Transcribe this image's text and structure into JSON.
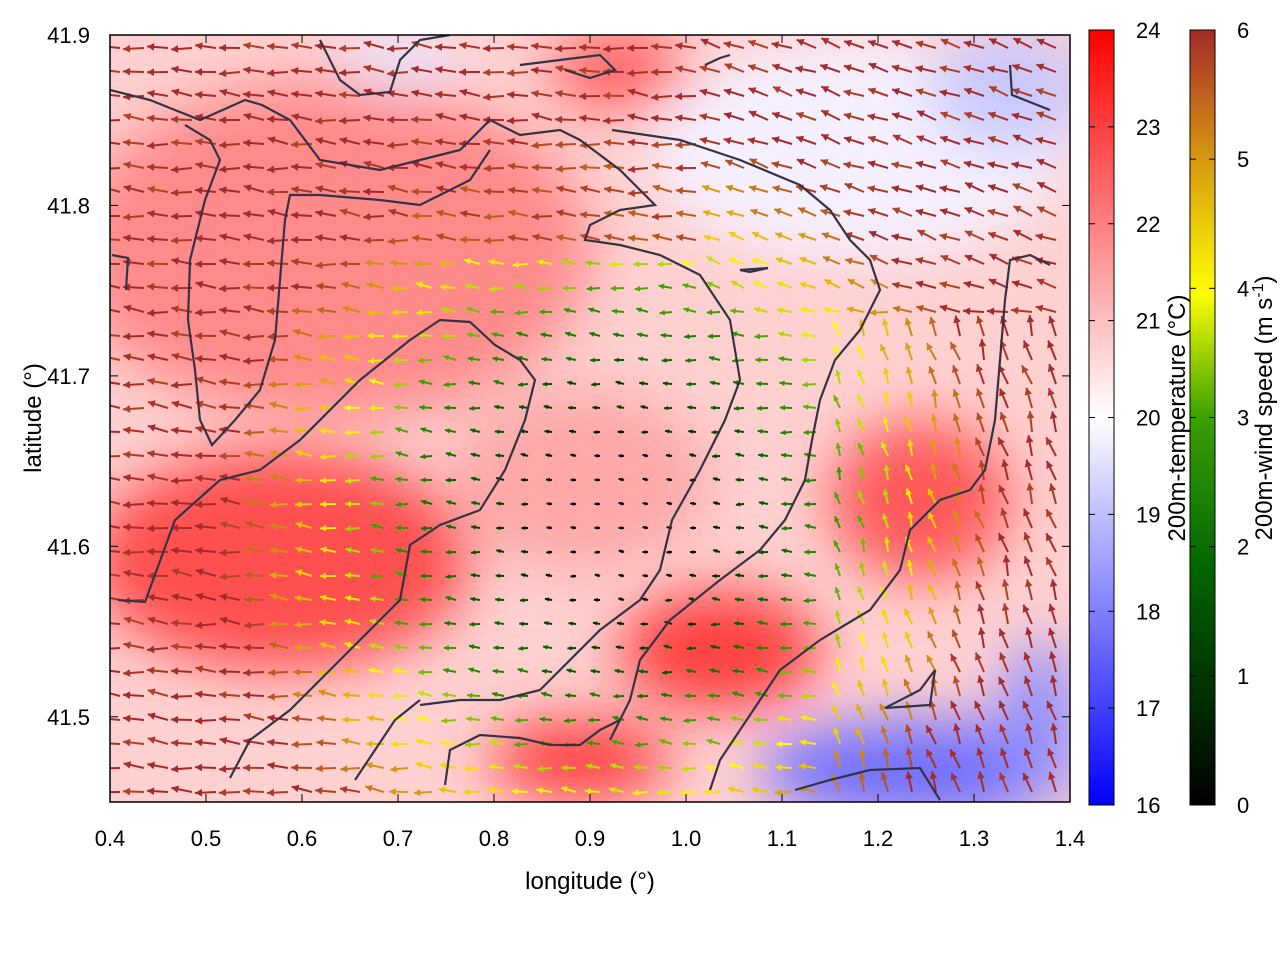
{
  "chart_data": {
    "type": "heatmap",
    "subtype": "temperature field with wind vector overlay and contour lines",
    "xlabel": "longitude (°)",
    "ylabel": "latitude (°)",
    "xlim": [
      0.4,
      1.4
    ],
    "ylim": [
      41.45,
      41.9
    ],
    "x_ticks": [
      "0.4",
      "0.5",
      "0.6",
      "0.7",
      "0.8",
      "0.9",
      "1.0",
      "1.1",
      "1.2",
      "1.3",
      "1.4"
    ],
    "y_ticks": [
      "41.5",
      "41.6",
      "41.7",
      "41.8",
      "41.9"
    ],
    "temperature_colorbar": {
      "label": "200m-temperature (°C)",
      "range": [
        16,
        24
      ],
      "ticks": [
        "16",
        "17",
        "18",
        "19",
        "20",
        "21",
        "22",
        "23",
        "24"
      ],
      "colors": [
        "#0000ff",
        "#ffffff",
        "#ff0000"
      ]
    },
    "wind_colorbar": {
      "label_main": "200m-wind speed (m s",
      "label_sup": "-1",
      "label_end": ")",
      "range": [
        0,
        6
      ],
      "ticks": [
        "0",
        "1",
        "2",
        "3",
        "4",
        "5",
        "6"
      ],
      "colors": [
        "#000000",
        "#006400",
        "#33a000",
        "#ffff00",
        "#e0a010",
        "#a52a2a"
      ]
    },
    "grid": false,
    "legend": "colorbars right"
  }
}
